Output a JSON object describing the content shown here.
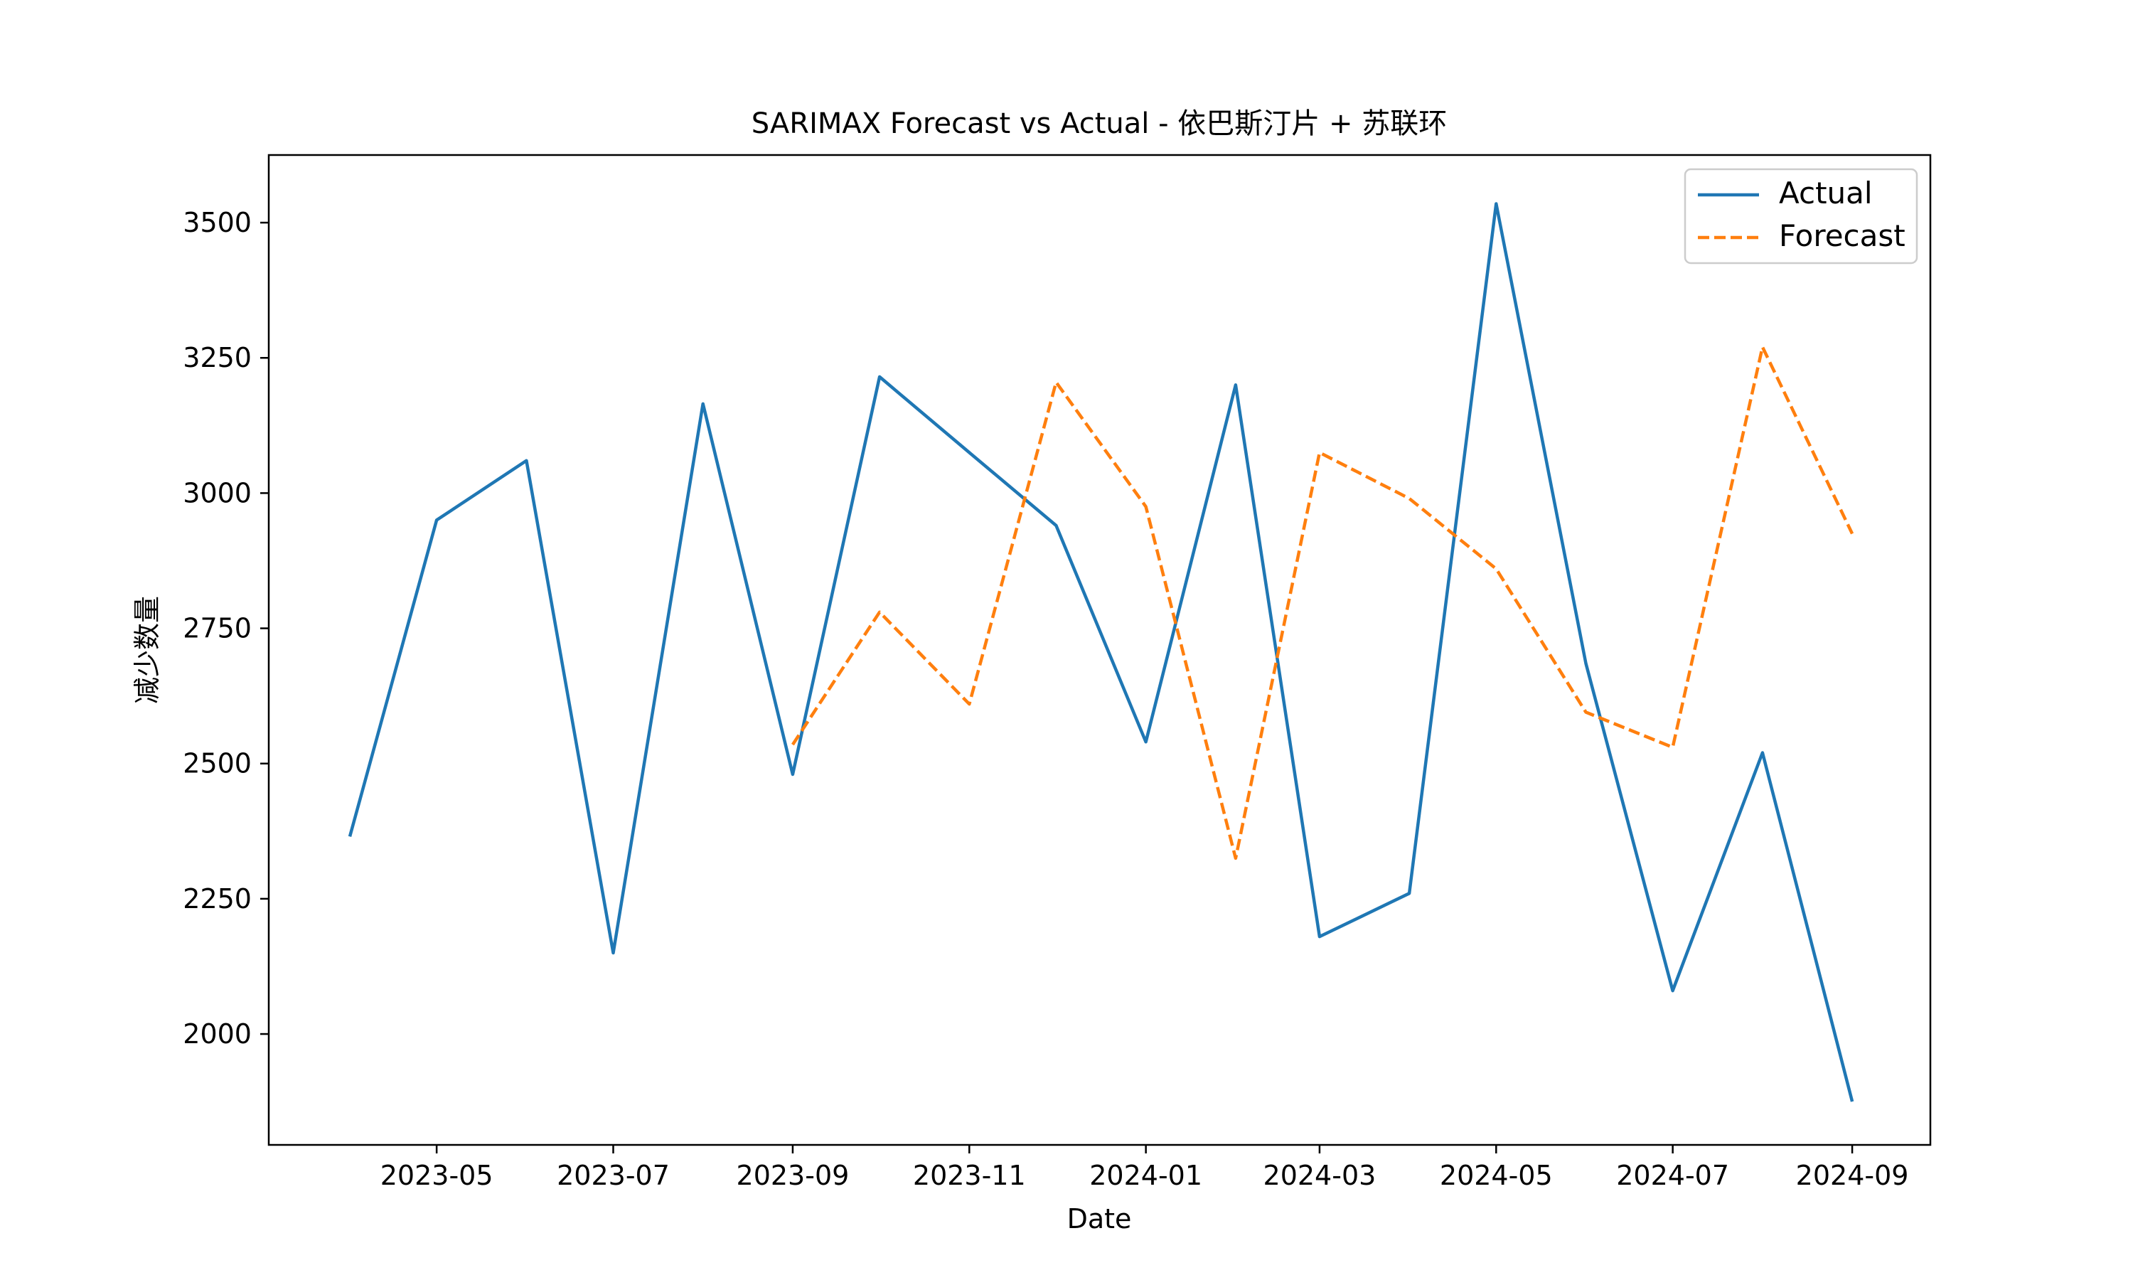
{
  "chart_data": {
    "type": "line",
    "title": "SARIMAX Forecast vs Actual - 依巴斯汀片 + 苏联环",
    "xlabel": "Date",
    "ylabel": "减少数量",
    "x_tick_labels": [
      "2023-05",
      "2023-07",
      "2023-09",
      "2023-11",
      "2024-01",
      "2024-03",
      "2024-05",
      "2024-07",
      "2024-09"
    ],
    "y_ticks": [
      2000,
      2250,
      2500,
      2750,
      3000,
      3250,
      3500
    ],
    "ylim": [
      1795,
      3625
    ],
    "xlim": [
      "2023-03-04",
      "2024-09-28"
    ],
    "grid": false,
    "legend_position": "top-right",
    "series": [
      {
        "name": "Actual",
        "color": "#1f77b4",
        "style": "solid",
        "x": [
          "2023-04-01",
          "2023-05-01",
          "2023-06-01",
          "2023-07-01",
          "2023-08-01",
          "2023-09-01",
          "2023-10-01",
          "2023-11-01",
          "2023-12-01",
          "2024-01-01",
          "2024-02-01",
          "2024-03-01",
          "2024-04-01",
          "2024-05-01",
          "2024-06-01",
          "2024-07-01",
          "2024-08-01",
          "2024-09-01"
        ],
        "values": [
          2365,
          2950,
          3060,
          2150,
          3165,
          2480,
          3215,
          3075,
          2940,
          2540,
          3200,
          2180,
          2260,
          3535,
          2685,
          2080,
          2520,
          1875
        ]
      },
      {
        "name": "Forecast",
        "color": "#ff7f0e",
        "style": "dashed",
        "x": [
          "2023-09-01",
          "2023-10-01",
          "2023-11-01",
          "2023-12-01",
          "2024-01-01",
          "2024-02-01",
          "2024-03-01",
          "2024-04-01",
          "2024-05-01",
          "2024-06-01",
          "2024-07-01",
          "2024-08-01",
          "2024-09-01"
        ],
        "values": [
          2535,
          2780,
          2610,
          3205,
          2975,
          2325,
          3075,
          2990,
          2860,
          2595,
          2530,
          3270,
          2925
        ]
      }
    ]
  }
}
